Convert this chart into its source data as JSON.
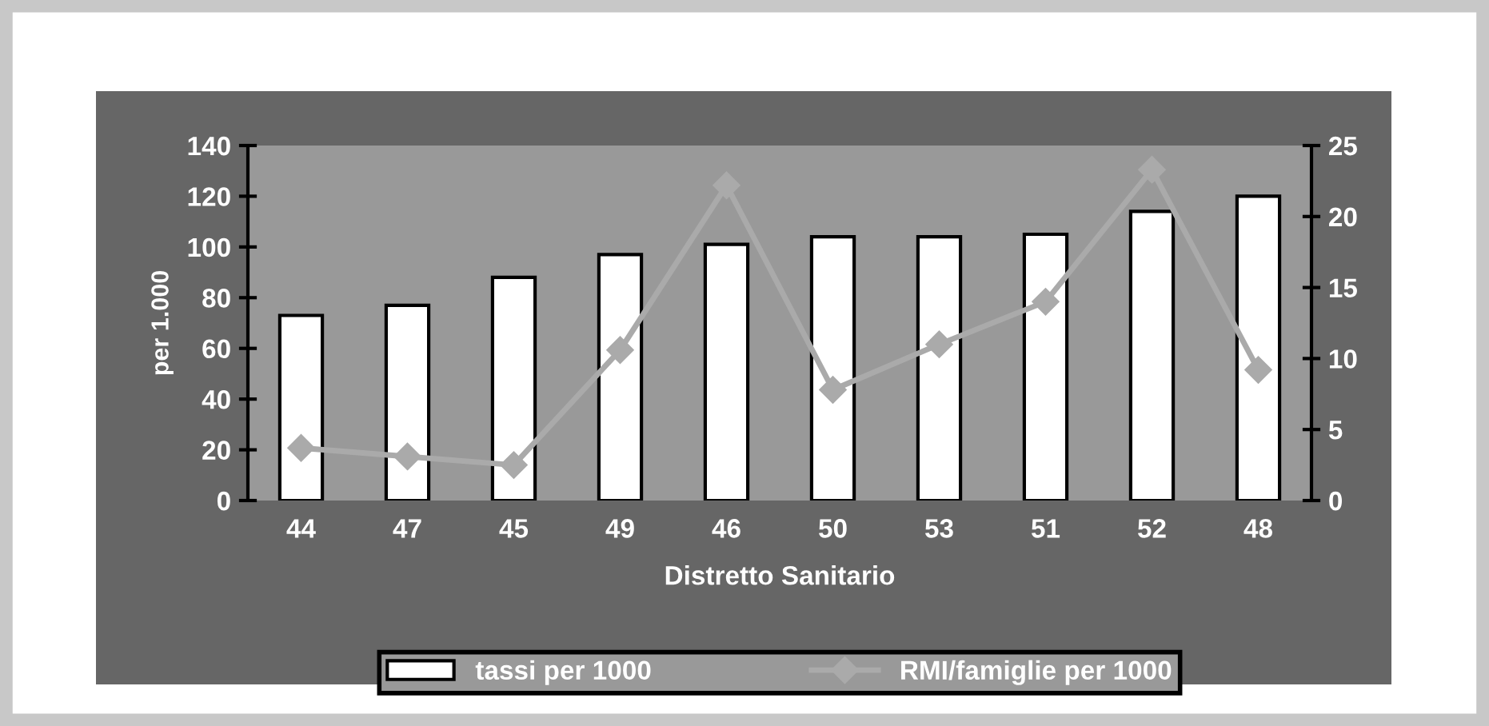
{
  "chart_data": {
    "type": "bar",
    "xlabel": "Distretto Sanitario",
    "ylabel": "per 1.000",
    "categories": [
      "44",
      "47",
      "45",
      "49",
      "46",
      "50",
      "53",
      "51",
      "52",
      "48"
    ],
    "series": [
      {
        "name": "tassi per 1000",
        "color": "#ffffff",
        "values": [
          73,
          77,
          88,
          97,
          101,
          104,
          104,
          105,
          114,
          120
        ]
      },
      {
        "name": "RMI/famiglie per 1000",
        "type": "line",
        "axis": "y2",
        "color": "#aaaaaa",
        "marker": "diamond",
        "values": [
          3.7,
          3.1,
          2.5,
          10.6,
          22.2,
          7.8,
          11.0,
          14.0,
          23.3,
          9.2
        ]
      }
    ],
    "ylim": [
      0,
      140
    ],
    "yticks": [
      0,
      20,
      40,
      60,
      80,
      100,
      120,
      140
    ],
    "y2lim": [
      0,
      25
    ],
    "y2ticks": [
      0,
      5,
      10,
      15,
      20,
      25
    ],
    "grid": false,
    "legend": "bottom"
  }
}
